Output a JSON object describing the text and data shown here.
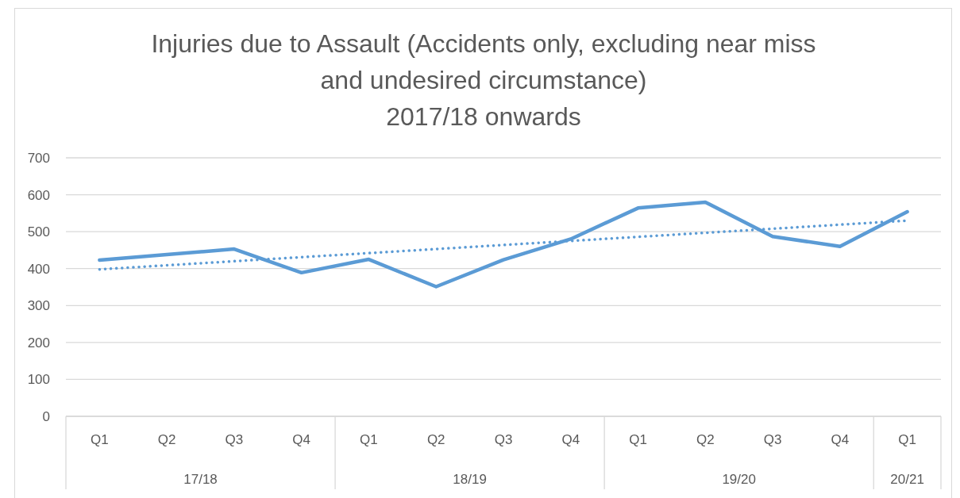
{
  "chart_data": {
    "type": "line",
    "title": "Injuries due to Assault (Accidents only, excluding near miss and undesired circumstance)",
    "subtitle": "2017/18 onwards",
    "categories": [
      "Q1",
      "Q2",
      "Q3",
      "Q4",
      "Q1",
      "Q2",
      "Q3",
      "Q4",
      "Q1",
      "Q2",
      "Q3",
      "Q4",
      "Q1"
    ],
    "series": [
      {
        "color": "#5b9bd5",
        "values": [
          423,
          438,
          453,
          389,
          425,
          351,
          424,
          480,
          564,
          580,
          487,
          460,
          554
        ]
      },
      {
        "type": "line",
        "line_style": "dotted",
        "color": "#5b9bd5",
        "values": [
          398,
          409,
          420,
          431,
          442,
          453,
          464,
          475,
          486,
          497,
          508,
          519,
          530
        ]
      }
    ],
    "ylim": [
      0,
      700
    ],
    "yticks": [
      0,
      100,
      200,
      300,
      400,
      500,
      600,
      700
    ],
    "grid": "y",
    "marker": "none",
    "line_style": "solid",
    "annotations": [
      "17/18",
      "18/19",
      "19/20",
      "20/21"
    ]
  }
}
